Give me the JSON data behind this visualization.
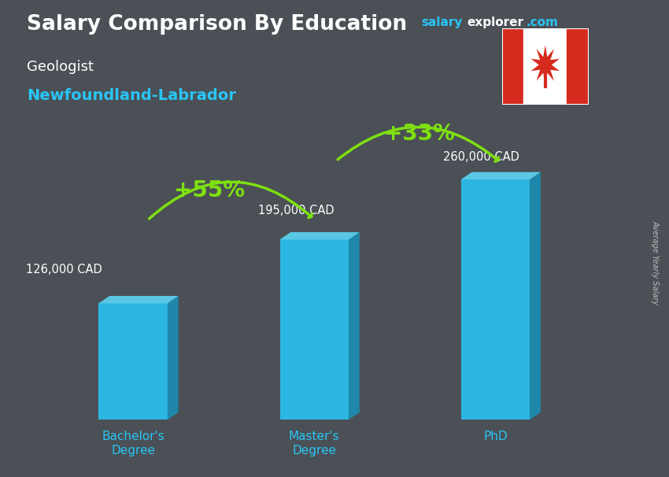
{
  "title": "Salary Comparison By Education",
  "subtitle_job": "Geologist",
  "subtitle_location": "Newfoundland-Labrador",
  "ylabel": "Average Yearly Salary",
  "website_salary": "salary",
  "website_explorer": "explorer",
  "website_com": ".com",
  "categories": [
    "Bachelor's\nDegree",
    "Master's\nDegree",
    "PhD"
  ],
  "values": [
    126000,
    195000,
    260000
  ],
  "value_labels": [
    "126,000 CAD",
    "195,000 CAD",
    "260,000 CAD"
  ],
  "bar_color_front": "#29C5F6",
  "bar_color_side": "#1A8FB5",
  "bar_color_top": "#5DD8FA",
  "pct_labels": [
    "+55%",
    "+33%"
  ],
  "pct_color": "#7EE010",
  "arrow_color": "#7EE010",
  "background_color": "#4a5055",
  "title_color": "#ffffff",
  "subtitle_job_color": "#ffffff",
  "subtitle_location_color": "#29C5F6",
  "value_label_color": "#ffffff",
  "tick_label_color": "#29C5F6",
  "website_salary_color": "#29C5F6",
  "website_explorer_color": "#ffffff",
  "website_com_color": "#29C5F6",
  "ylim": [
    0,
    320000
  ],
  "bar_width": 0.38,
  "bar_depth": 0.06
}
